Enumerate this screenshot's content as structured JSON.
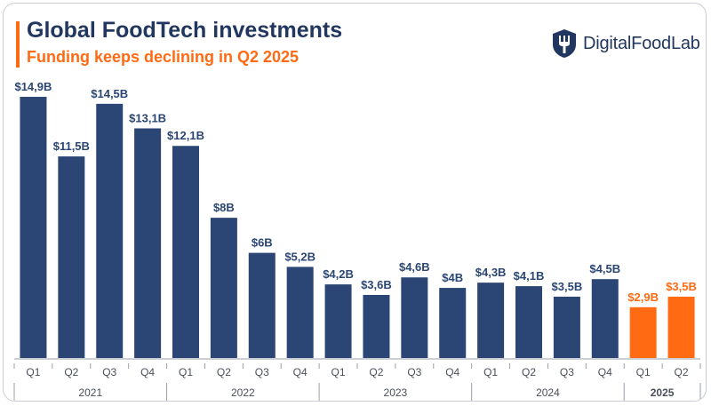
{
  "header": {
    "title": "Global FoodTech investments",
    "subtitle": "Funding keeps declining in Q2 2025"
  },
  "brand": {
    "name": "DigitalFoodLab",
    "icon": "fork-shield-icon"
  },
  "colors": {
    "bar": "#2b4674",
    "highlight": "#ff6a13",
    "title": "#22375f",
    "axis": "#9aa0aa"
  },
  "chart_data": {
    "type": "bar",
    "unit": "USD billions",
    "categories": [
      "Q1",
      "Q2",
      "Q3",
      "Q4",
      "Q1",
      "Q2",
      "Q3",
      "Q4",
      "Q1",
      "Q2",
      "Q3",
      "Q4",
      "Q1",
      "Q2",
      "Q3",
      "Q4",
      "Q1",
      "Q2"
    ],
    "years": [
      {
        "label": "2021",
        "start": 0,
        "end": 3,
        "highlight": false
      },
      {
        "label": "2022",
        "start": 4,
        "end": 7,
        "highlight": false
      },
      {
        "label": "2023",
        "start": 8,
        "end": 11,
        "highlight": false
      },
      {
        "label": "2024",
        "start": 12,
        "end": 15,
        "highlight": false
      },
      {
        "label": "2025",
        "start": 16,
        "end": 17,
        "highlight": true
      }
    ],
    "values": [
      14.9,
      11.5,
      14.5,
      13.1,
      12.1,
      8,
      6,
      5.2,
      4.2,
      3.6,
      4.6,
      4,
      4.3,
      4.1,
      3.5,
      4.5,
      2.9,
      3.5
    ],
    "labels": [
      "$14,9B",
      "$11,5B",
      "$14,5B",
      "$13,1B",
      "$12,1B",
      "$8B",
      "$6B",
      "$5,2B",
      "$4,2B",
      "$3,6B",
      "$4,6B",
      "$4B",
      "$4,3B",
      "$4,1B",
      "$3,5B",
      "$4,5B",
      "$2,9B",
      "$3,5B"
    ],
    "highlighted": [
      16,
      17
    ],
    "ylim": [
      0,
      15
    ],
    "grid": false,
    "legend": "none"
  }
}
